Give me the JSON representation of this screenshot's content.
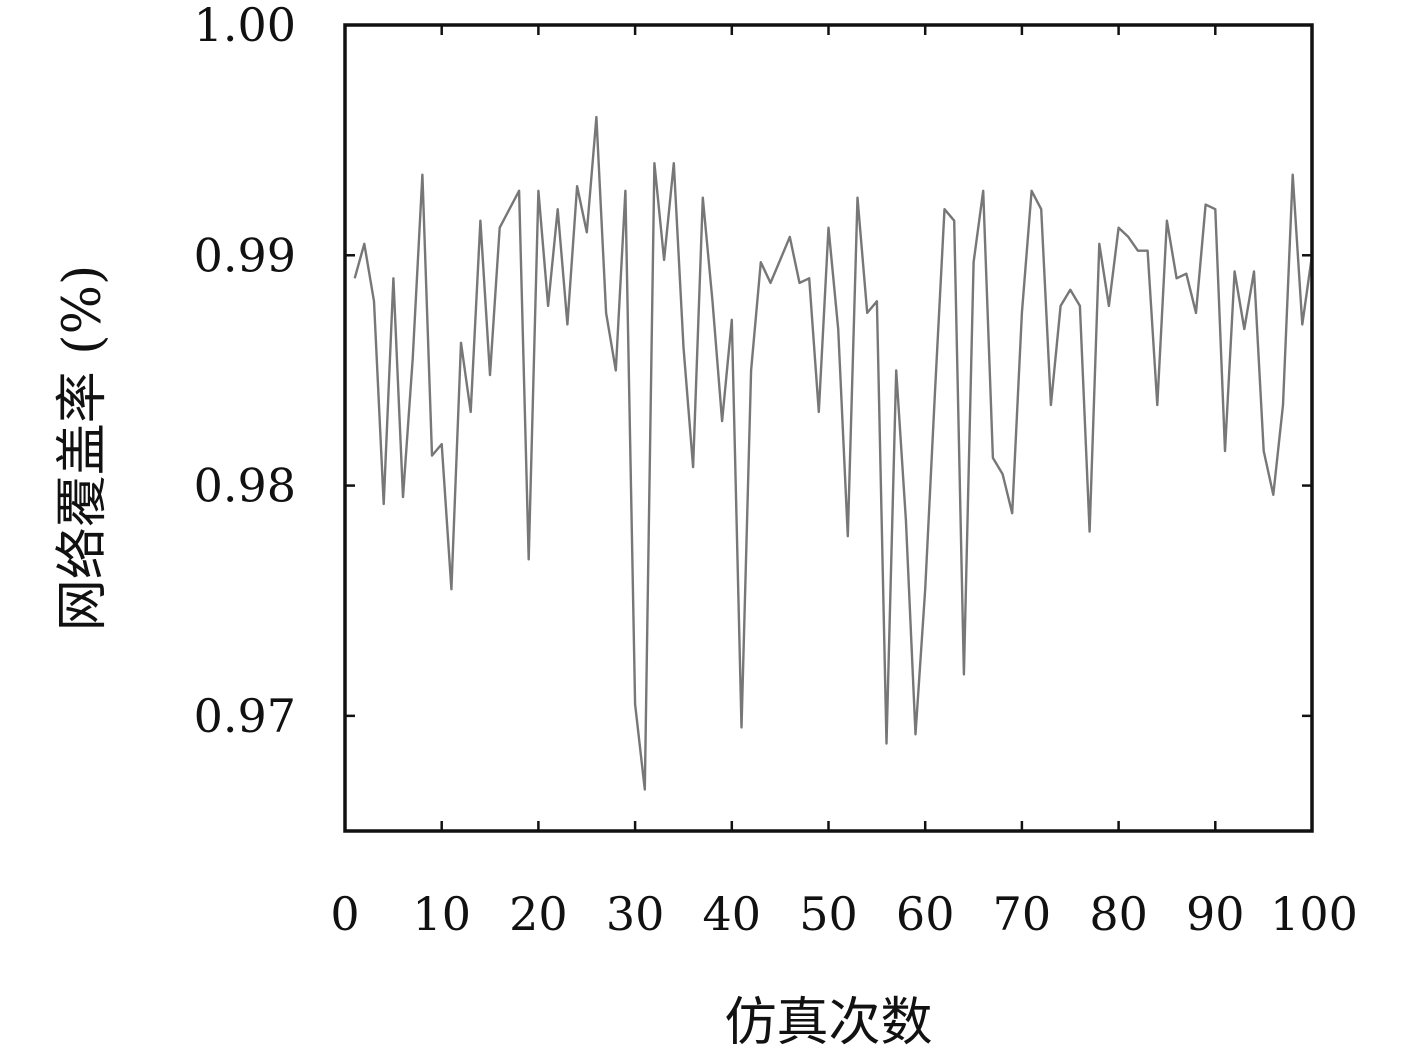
{
  "chart_data": {
    "type": "line",
    "xlabel": "仿真次数",
    "ylabel": "网络覆盖率 (%)",
    "xlim": [
      0,
      100
    ],
    "ylim": [
      0.965,
      1.0
    ],
    "xticks": [
      "0",
      "10",
      "20",
      "30",
      "40",
      "50",
      "60",
      "70",
      "80",
      "90",
      "100"
    ],
    "yticks": [
      "0.97",
      "0.98",
      "0.99",
      "1.00"
    ],
    "grid": false,
    "line_color": "#777777",
    "series": [
      {
        "x": [
          1,
          2,
          3,
          4,
          5,
          6,
          7,
          8,
          9,
          10,
          11,
          12,
          13,
          14,
          15,
          16,
          17,
          18,
          19,
          20,
          21,
          22,
          23,
          24,
          25,
          26,
          27,
          28,
          29,
          30,
          31,
          32,
          33,
          34,
          35,
          36,
          37,
          38,
          39,
          40,
          41,
          42,
          43,
          44,
          45,
          46,
          47,
          48,
          49,
          50,
          51,
          52,
          53,
          54,
          55,
          56,
          57,
          58,
          59,
          60,
          61,
          62,
          63,
          64,
          65,
          66,
          67,
          68,
          69,
          70,
          71,
          72,
          73,
          74,
          75,
          76,
          77,
          78,
          79,
          80,
          81,
          82,
          83,
          84,
          85,
          86,
          87,
          88,
          89,
          90,
          91,
          92,
          93,
          94,
          95,
          96,
          97,
          98,
          99,
          100
        ],
        "values": [
          0.989,
          0.9905,
          0.988,
          0.9792,
          0.989,
          0.9795,
          0.9855,
          0.9935,
          0.9813,
          0.9818,
          0.9755,
          0.9862,
          0.9832,
          0.9915,
          0.9848,
          0.9912,
          0.992,
          0.9928,
          0.9768,
          0.9928,
          0.9878,
          0.992,
          0.987,
          0.993,
          0.991,
          0.996,
          0.9875,
          0.985,
          0.9928,
          0.9705,
          0.9668,
          0.994,
          0.9898,
          0.994,
          0.986,
          0.9808,
          0.9925,
          0.988,
          0.9828,
          0.9872,
          0.9695,
          0.985,
          0.9897,
          0.9888,
          0.9898,
          0.9908,
          0.9888,
          0.989,
          0.9832,
          0.9912,
          0.9868,
          0.9778,
          0.9925,
          0.9875,
          0.988,
          0.9688,
          0.985,
          0.9785,
          0.9692,
          0.9755,
          0.984,
          0.992,
          0.9915,
          0.9718,
          0.9897,
          0.9928,
          0.9812,
          0.9805,
          0.9788,
          0.9875,
          0.9928,
          0.992,
          0.9835,
          0.9878,
          0.9885,
          0.9878,
          0.978,
          0.9905,
          0.9878,
          0.9912,
          0.9908,
          0.9902,
          0.9902,
          0.9835,
          0.9915,
          0.989,
          0.9892,
          0.9875,
          0.9922,
          0.992,
          0.9815,
          0.9893,
          0.9868,
          0.9893,
          0.9815,
          0.9796,
          0.9835,
          0.9935,
          0.987,
          0.99
        ]
      }
    ]
  }
}
